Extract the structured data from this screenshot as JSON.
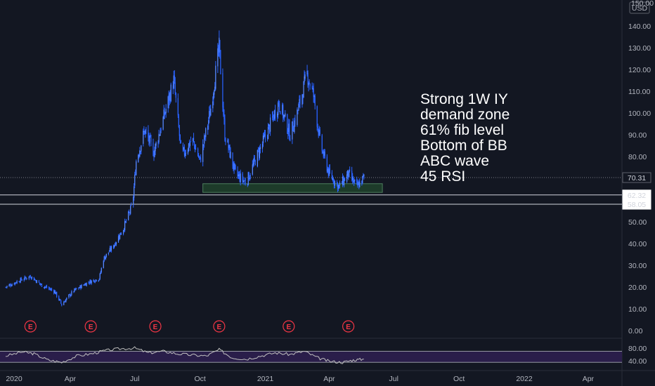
{
  "chart_data": [
    {
      "type": "candlestick",
      "currency": "USD",
      "ylim": [
        0,
        150
      ],
      "y_ticks": [
        0,
        10,
        20,
        30,
        40,
        50,
        60,
        70,
        80,
        90,
        100,
        110,
        120,
        130,
        140
      ],
      "y_tick_labels": [
        "0.00",
        "10.00",
        "20.00",
        "30.00",
        "40.00",
        "50.00",
        "60.00",
        "70.00",
        "80.00",
        "90.00",
        "100.00",
        "110.00",
        "120.00",
        "130.00",
        "140.00"
      ],
      "top_tick_label": "150.00",
      "x_tick_labels": [
        "2020",
        "Apr",
        "Jul",
        "Oct",
        "2021",
        "Apr",
        "Jul",
        "Oct",
        "2022",
        "Apr"
      ],
      "current_price": 70.31,
      "current_price_label": "70.31",
      "horizontal_levels": [
        {
          "value": 62.32,
          "label": "62.32"
        },
        {
          "value": 58.05,
          "label": "58.05"
        }
      ],
      "demand_zone": {
        "low": 63.5,
        "high": 67.5,
        "start": "2020-10-05",
        "end": "2021-06-15"
      },
      "earnings_markers": [
        "2020-02-05",
        "2020-04-30",
        "2020-07-30",
        "2020-10-28",
        "2021-02-03",
        "2021-04-28"
      ],
      "earnings_label": "E",
      "closes": [
        {
          "date": "2020-01-01",
          "close": 20
        },
        {
          "date": "2020-01-20",
          "close": 23
        },
        {
          "date": "2020-02-05",
          "close": 25
        },
        {
          "date": "2020-02-20",
          "close": 21
        },
        {
          "date": "2020-03-10",
          "close": 18
        },
        {
          "date": "2020-03-20",
          "close": 12
        },
        {
          "date": "2020-04-05",
          "close": 18
        },
        {
          "date": "2020-04-25",
          "close": 22
        },
        {
          "date": "2020-05-12",
          "close": 24
        },
        {
          "date": "2020-05-18",
          "close": 33
        },
        {
          "date": "2020-06-01",
          "close": 39
        },
        {
          "date": "2020-06-15",
          "close": 47
        },
        {
          "date": "2020-06-28",
          "close": 58
        },
        {
          "date": "2020-07-03",
          "close": 78
        },
        {
          "date": "2020-07-15",
          "close": 92
        },
        {
          "date": "2020-07-28",
          "close": 82
        },
        {
          "date": "2020-08-10",
          "close": 97
        },
        {
          "date": "2020-08-25",
          "close": 115
        },
        {
          "date": "2020-09-05",
          "close": 80
        },
        {
          "date": "2020-09-20",
          "close": 88
        },
        {
          "date": "2020-10-01",
          "close": 78
        },
        {
          "date": "2020-10-15",
          "close": 100
        },
        {
          "date": "2020-10-28",
          "close": 130
        },
        {
          "date": "2020-11-05",
          "close": 90
        },
        {
          "date": "2020-11-20",
          "close": 72
        },
        {
          "date": "2020-12-05",
          "close": 68
        },
        {
          "date": "2020-12-20",
          "close": 80
        },
        {
          "date": "2021-01-05",
          "close": 92
        },
        {
          "date": "2021-01-20",
          "close": 105
        },
        {
          "date": "2021-02-05",
          "close": 90
        },
        {
          "date": "2021-02-15",
          "close": 100
        },
        {
          "date": "2021-03-01",
          "close": 118
        },
        {
          "date": "2021-03-10",
          "close": 108
        },
        {
          "date": "2021-03-20",
          "close": 85
        },
        {
          "date": "2021-04-01",
          "close": 72
        },
        {
          "date": "2021-04-15",
          "close": 66
        },
        {
          "date": "2021-04-28",
          "close": 72
        },
        {
          "date": "2021-05-10",
          "close": 66
        },
        {
          "date": "2021-05-20",
          "close": 70.31
        }
      ]
    },
    {
      "type": "line",
      "name": "RSI",
      "ylim": [
        20,
        95
      ],
      "y_tick_labels": [
        "80.00",
        "40.00"
      ],
      "band": [
        35,
        70
      ],
      "x": [
        "2020-01-01",
        "2020-01-25",
        "2020-02-10",
        "2020-03-01",
        "2020-03-20",
        "2020-04-10",
        "2020-05-01",
        "2020-05-20",
        "2020-06-10",
        "2020-07-01",
        "2020-07-20",
        "2020-08-10",
        "2020-08-30",
        "2020-09-20",
        "2020-10-10",
        "2020-10-28",
        "2020-11-15",
        "2020-12-05",
        "2020-12-25",
        "2021-01-15",
        "2021-02-05",
        "2021-02-25",
        "2021-03-15",
        "2021-04-01",
        "2021-04-20",
        "2021-05-05",
        "2021-05-20"
      ],
      "values": [
        55,
        68,
        62,
        42,
        35,
        55,
        62,
        72,
        78,
        80,
        65,
        70,
        62,
        58,
        55,
        75,
        50,
        45,
        55,
        65,
        60,
        70,
        50,
        38,
        35,
        42,
        45
      ]
    }
  ],
  "annotation_lines": [
    "Strong 1W IY",
    "demand zone",
    "61% fib level",
    "Bottom of BB",
    "ABC wave",
    "45 RSI"
  ],
  "colors": {
    "background": "#131722",
    "candle": "#2962ff",
    "rsi_line": "#c0c0c0",
    "rsi_band": "#2a1e4a",
    "zone": "#1d3b2a",
    "earnings": "#f23645"
  }
}
